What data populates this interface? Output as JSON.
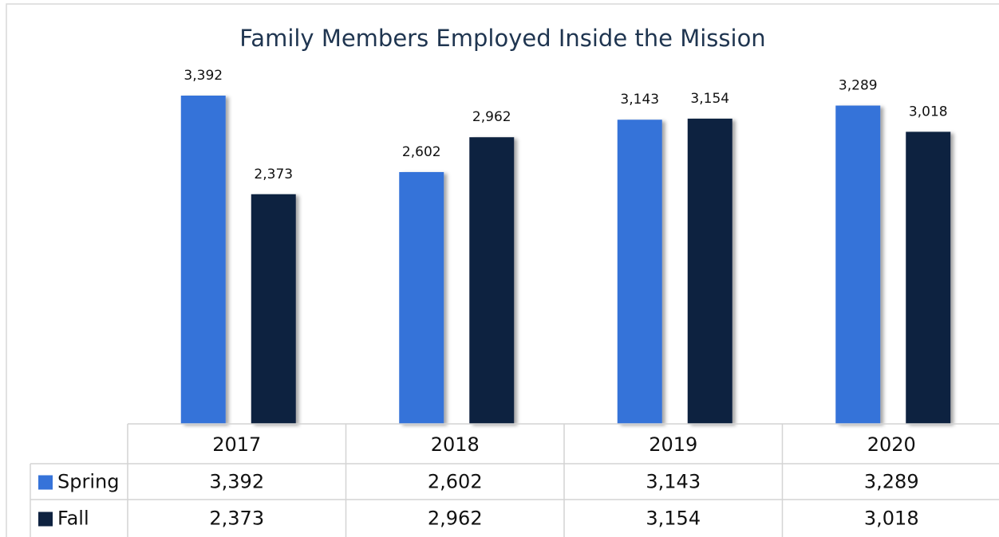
{
  "chart_data": {
    "type": "bar",
    "title": "Family Members Employed Inside the Mission",
    "categories": [
      "2017",
      "2018",
      "2019",
      "2020"
    ],
    "series": [
      {
        "name": "Spring",
        "color": "#3673d9",
        "values": [
          3392,
          2602,
          3143,
          3289
        ],
        "value_labels": [
          "3,392",
          "2,602",
          "3,143",
          "3,289"
        ]
      },
      {
        "name": "Fall",
        "color": "#0e2240",
        "values": [
          2373,
          2962,
          3154,
          3018
        ],
        "value_labels": [
          "2,373",
          "2,962",
          "3,154",
          "3,018"
        ]
      }
    ]
  }
}
